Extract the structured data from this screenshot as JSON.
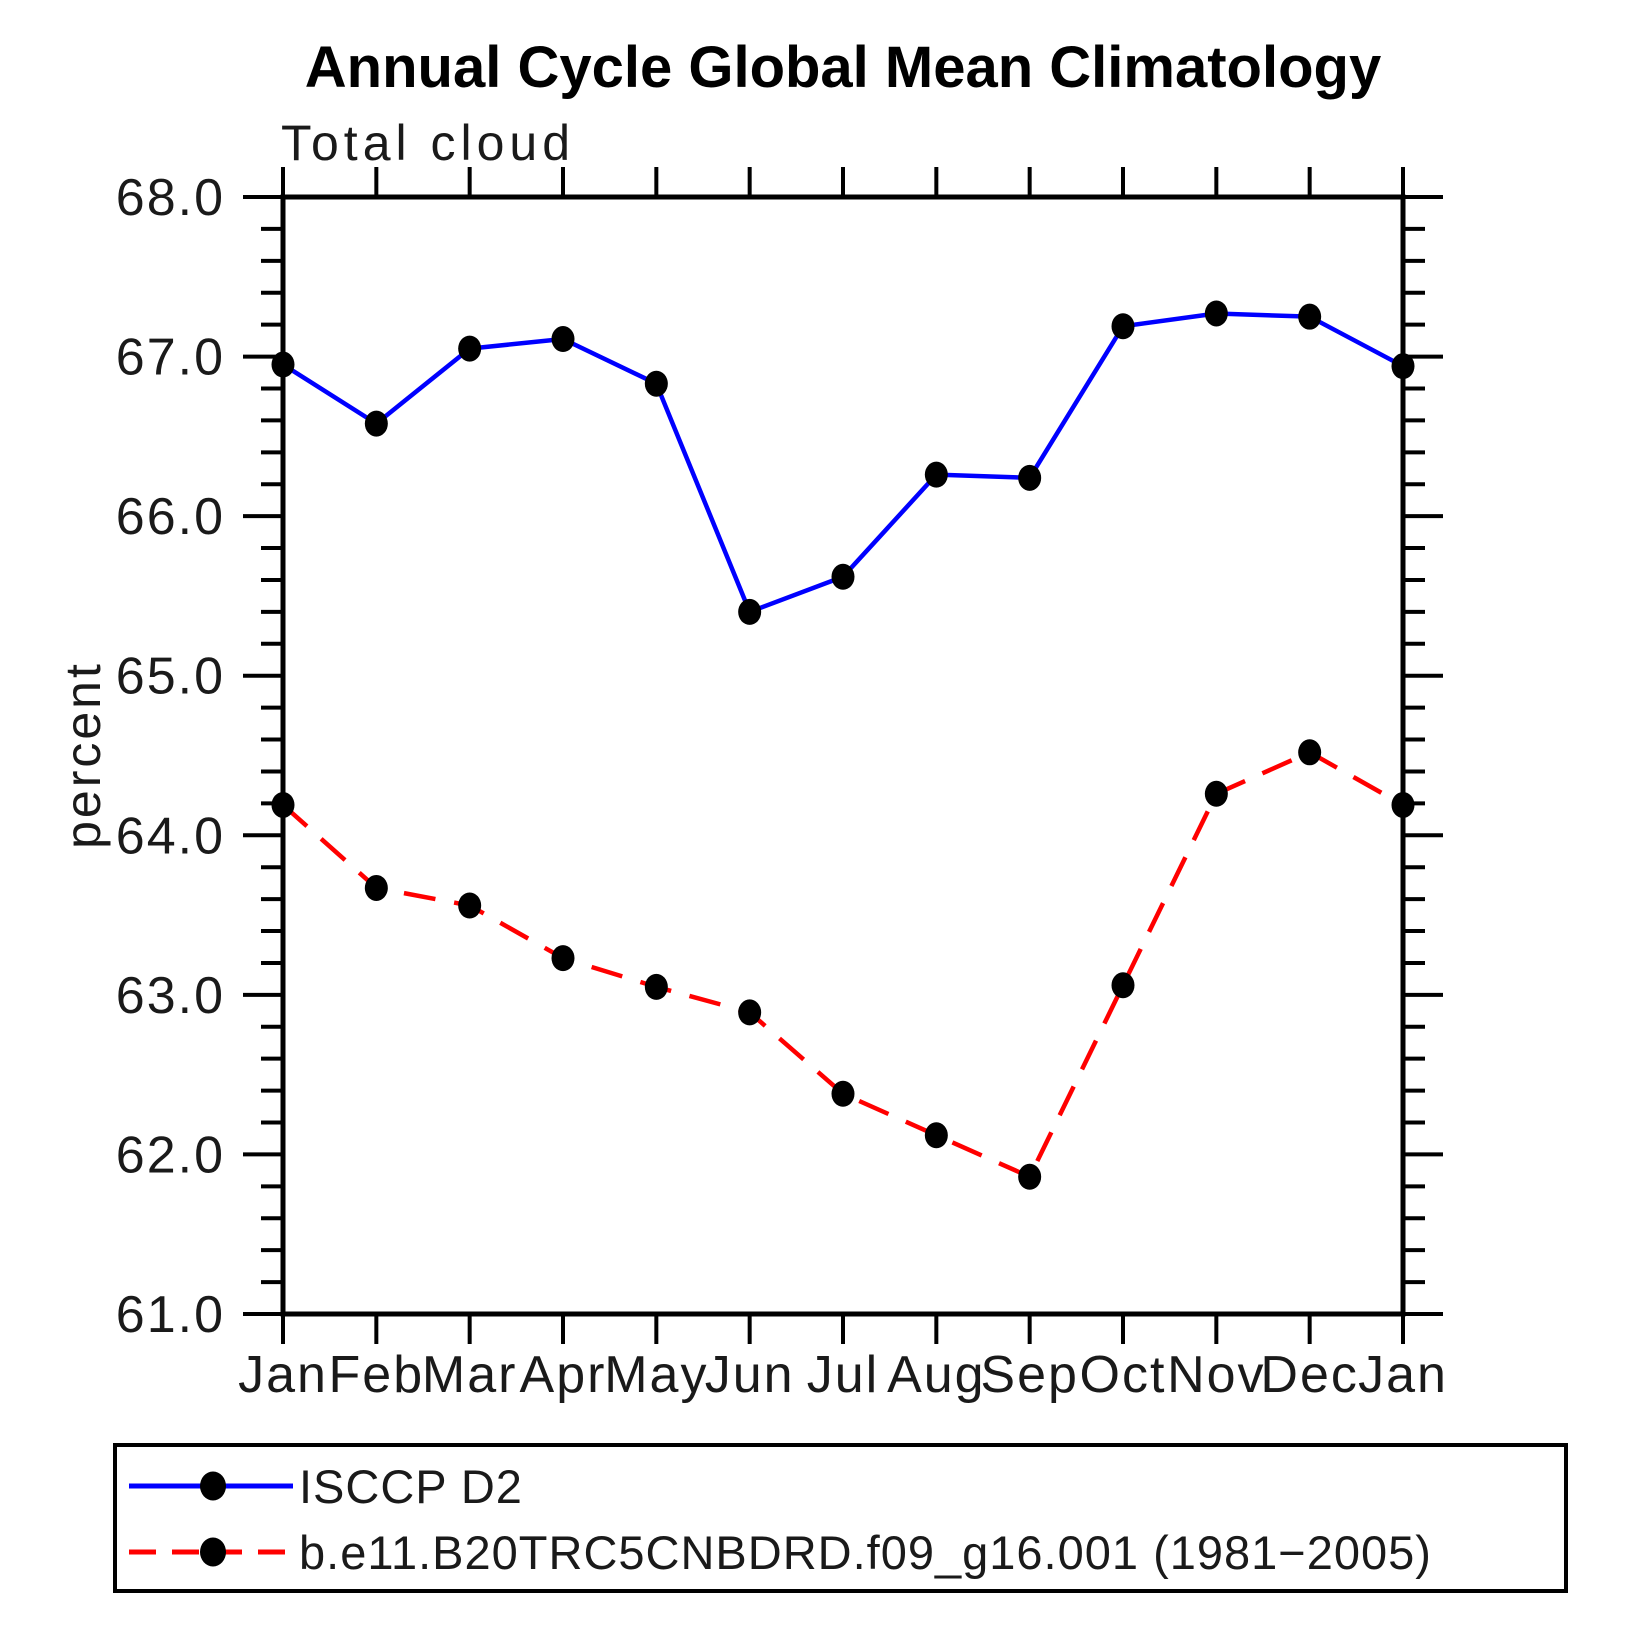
{
  "chart_data": {
    "type": "line",
    "title": "Annual Cycle Global Mean Climatology",
    "subtitle": "Total cloud",
    "ylabel": "percent",
    "xlabel": "",
    "categories": [
      "Jan",
      "Feb",
      "Mar",
      "Apr",
      "May",
      "Jun",
      "Jul",
      "Aug",
      "Sep",
      "Oct",
      "Nov",
      "Dec",
      "Jan"
    ],
    "ylim": [
      61.0,
      68.0
    ],
    "ytick_interval": 1.0,
    "yminor_interval": 0.2,
    "ytick_label_format": "one_decimal",
    "grid": "off",
    "legend_position": "bottom-left-box",
    "axis_color": "#000000",
    "marker_color": "#000000",
    "series": [
      {
        "name": "ISCCP D2",
        "color": "#0000ff",
        "style": "solid",
        "marker": "circle",
        "values": [
          66.95,
          66.58,
          67.05,
          67.11,
          66.83,
          65.4,
          65.62,
          66.26,
          66.24,
          67.19,
          67.27,
          67.25,
          66.94
        ]
      },
      {
        "name": "b.e11.B20TRC5CNBDRD.f09_g16.001 (1981−2005)",
        "color": "#ff0000",
        "style": "dashed",
        "marker": "circle",
        "values": [
          64.19,
          63.67,
          63.56,
          63.23,
          63.05,
          62.89,
          62.38,
          62.12,
          61.86,
          63.06,
          64.26,
          64.52,
          64.19
        ]
      }
    ]
  }
}
